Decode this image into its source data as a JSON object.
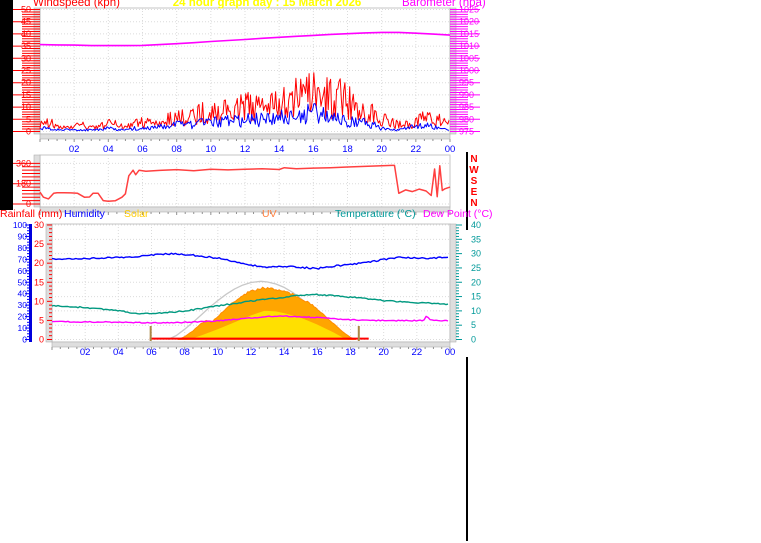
{
  "title": {
    "text": "24 hour graph day : 15 March 2026",
    "color": "#FFFF00"
  },
  "top_chart": {
    "left_label": "Windspeed (kph)",
    "left_label_color": "#FF0000",
    "right_label": "Barometer (hpa)",
    "right_label_color": "#FF00FF"
  },
  "legend_row": [
    {
      "text": "Rainfall (mm)",
      "color": "#FF0000"
    },
    {
      "text": "Humidity",
      "color": "#0000FF"
    },
    {
      "text": "Solar",
      "color": "#FFCC00"
    },
    {
      "text": "UV",
      "color": "#FF8040"
    },
    {
      "text": "Temperature (°C)",
      "color": "#009999"
    },
    {
      "text": "Dew Point (°C)",
      "color": "#FF00FF"
    }
  ],
  "x_tick_labels": [
    "02",
    "04",
    "06",
    "08",
    "10",
    "12",
    "14",
    "16",
    "18",
    "20",
    "22",
    "00"
  ],
  "chart_data": [
    {
      "type": "line",
      "title": "24 hour graph day : 15 March 2026",
      "x_axis": {
        "min": 0,
        "max": 24,
        "label_step": 2,
        "minor_step": 0.5,
        "color": "#0000FF"
      },
      "left_axis": {
        "label": "Windspeed (kph)",
        "min": 0,
        "max": 50,
        "step": 5,
        "minor_step": 1,
        "color": "#FF0000"
      },
      "right_axis": {
        "label": "Barometer (hpa)",
        "min": 975,
        "max": 1025,
        "step": 5,
        "minor_step": 1,
        "color": "#FF00FF"
      },
      "series": [
        {
          "name": "wind-gust",
          "axis": "left",
          "color": "#FF0000",
          "style": "spiky",
          "x_start": 0,
          "x_step": 0.5,
          "values": [
            4,
            6,
            3,
            2,
            3,
            4,
            2,
            3,
            5,
            4,
            3,
            5,
            6,
            5,
            6,
            7,
            8,
            9,
            10,
            11,
            12,
            12,
            13,
            14,
            15,
            14,
            16,
            15,
            17,
            18,
            20,
            22,
            23,
            22,
            21,
            20,
            18,
            16,
            14,
            11,
            8,
            6,
            4,
            4,
            5,
            9,
            8,
            6,
            5
          ]
        },
        {
          "name": "wind-speed",
          "axis": "left",
          "color": "#0000FF",
          "style": "spiky",
          "x_start": 0,
          "x_step": 0.5,
          "values": [
            2,
            2,
            1,
            1,
            1,
            1,
            1,
            1,
            2,
            1,
            1,
            2,
            2,
            2,
            3,
            3,
            4,
            4,
            4,
            5,
            5,
            6,
            6,
            6,
            7,
            7,
            7,
            8,
            8,
            9,
            9,
            10,
            11,
            10,
            9,
            8,
            7,
            6,
            5,
            4,
            2,
            1,
            1,
            2,
            3,
            4,
            3,
            2,
            2
          ]
        },
        {
          "name": "barometer",
          "axis": "right",
          "color": "#FF00FF",
          "style": "line",
          "width": 1.6,
          "x_start": 0,
          "x_step": 1,
          "values": [
            1010.6,
            1010.5,
            1010.4,
            1010.2,
            1010.2,
            1010.2,
            1010.3,
            1010.6,
            1011.0,
            1011.4,
            1011.9,
            1012.3,
            1012.7,
            1013.2,
            1013.6,
            1014.0,
            1014.4,
            1014.8,
            1015.1,
            1015.4,
            1015.6,
            1015.6,
            1015.3,
            1014.9,
            1014.5
          ]
        }
      ]
    },
    {
      "type": "line",
      "name": "wind-direction",
      "x_axis": {
        "min": 0,
        "max": 24,
        "minor_step": 0.5,
        "color": "#0000FF"
      },
      "left_axis": {
        "min": 0,
        "max": 360,
        "step": 180,
        "minor_step": 30,
        "color": "#FF0000"
      },
      "compass_letters": {
        "letters": [
          "N",
          "W",
          "S",
          "E",
          "N"
        ],
        "color": "#FF0000"
      },
      "series": [
        {
          "name": "wind-bearing",
          "color": "#FF4040",
          "style": "line",
          "width": 1.5,
          "x": [
            0,
            0.2,
            0.5,
            0.8,
            1.0,
            1.4,
            1.8,
            2.2,
            2.6,
            2.9,
            3.1,
            3.4,
            3.7,
            4.0,
            4.4,
            4.8,
            5.0,
            5.2,
            5.45,
            5.6,
            5.8,
            6.2,
            7,
            8,
            9,
            10,
            11,
            12,
            13,
            14,
            14.3,
            15,
            16,
            17,
            18,
            19,
            20,
            20.6,
            20.75,
            21,
            21.4,
            21.8,
            22.2,
            22.6,
            22.9,
            23.1,
            23.25,
            23.4,
            23.55,
            23.7,
            24
          ],
          "values": [
            105,
            60,
            45,
            95,
            100,
            100,
            98,
            95,
            60,
            62,
            95,
            95,
            30,
            25,
            28,
            60,
            90,
            250,
            300,
            260,
            300,
            290,
            298,
            305,
            295,
            308,
            302,
            308,
            312,
            306,
            322,
            312,
            318,
            322,
            328,
            333,
            340,
            342,
            342,
            95,
            125,
            110,
            132,
            115,
            75,
            310,
            65,
            340,
            120,
            135,
            150
          ]
        }
      ]
    },
    {
      "type": "line",
      "x_axis": {
        "min": 0,
        "max": 24,
        "label_step": 2,
        "minor_step": 0.5,
        "color": "#0000FF"
      },
      "axes": {
        "humidity": {
          "label": "Humidity",
          "side": "left",
          "min": 0,
          "max": 100,
          "step": 10,
          "color": "#0000FF"
        },
        "rainfall": {
          "label": "Rainfall (mm)",
          "side": "left",
          "min": 0,
          "max": 30,
          "step": 5,
          "color": "#FF0000"
        },
        "temperature": {
          "label": "Temperature (°C)",
          "side": "right",
          "min": 0,
          "max": 40,
          "step": 5,
          "color": "#009999"
        },
        "solar": {
          "label": "Solar",
          "min": 0,
          "max": 1000,
          "visible": false
        }
      },
      "sun_markers": {
        "x": [
          5.95,
          18.5
        ],
        "color": "#AA8844"
      },
      "series": [
        {
          "name": "solar-theoretical",
          "axis": "solar",
          "color": "#C8C8C8",
          "style": "line",
          "width": 1.3,
          "x": [
            7.0,
            7.5,
            8,
            8.5,
            9,
            9.5,
            10,
            10.5,
            11,
            11.5,
            12,
            12.6,
            13,
            13.5,
            14,
            14.5,
            15,
            15.5,
            16,
            16.5,
            17,
            17.5,
            18,
            18.2
          ],
          "values": [
            0,
            35,
            90,
            150,
            215,
            280,
            340,
            395,
            440,
            475,
            498,
            508,
            502,
            485,
            455,
            412,
            358,
            295,
            225,
            152,
            82,
            28,
            2,
            0
          ]
        },
        {
          "name": "solar-radiation",
          "axis": "solar",
          "color": "#FFA500",
          "style": "area",
          "stroke": "#FF8C00",
          "jitter_mult": 0.05,
          "x": [
            7.6,
            8,
            8.5,
            9,
            9.3,
            9.6,
            10,
            10.4,
            10.8,
            11.2,
            11.6,
            12,
            12.4,
            12.8,
            13.2,
            13.6,
            14,
            14.4,
            14.8,
            15.2,
            15.6,
            16,
            16.4,
            16.8,
            17.2,
            17.6,
            18,
            18.3
          ],
          "values": [
            0,
            25,
            75,
            140,
            165,
            150,
            200,
            255,
            310,
            355,
            395,
            420,
            440,
            450,
            445,
            430,
            418,
            400,
            375,
            345,
            310,
            265,
            215,
            160,
            110,
            60,
            18,
            0
          ]
        },
        {
          "name": "solar-inner",
          "axis": "solar",
          "color": "#FFE000",
          "style": "area",
          "stroke": "#FFA500",
          "x": [
            8.2,
            9,
            10,
            11,
            12,
            12.8,
            13.5,
            14,
            15,
            16,
            17,
            17.8
          ],
          "values": [
            0,
            40,
            95,
            155,
            215,
            255,
            250,
            235,
            195,
            135,
            65,
            0
          ]
        },
        {
          "name": "uv-index",
          "axis": "temperature",
          "color": "#FF0000",
          "style": "line",
          "width": 2,
          "x": [
            5.9,
            19.1
          ],
          "values": [
            0.3,
            0.3
          ]
        },
        {
          "name": "humidity",
          "axis": "humidity",
          "color": "#0000FF",
          "style": "wiggle",
          "width": 1.4,
          "jitter": 0.7,
          "x_start": 0,
          "x_step": 1,
          "values": [
            70,
            70,
            71,
            71,
            72,
            72,
            74,
            75,
            74,
            73,
            71,
            68,
            65,
            63,
            64,
            63,
            62,
            64,
            66,
            67,
            70,
            72,
            71,
            71,
            72
          ]
        },
        {
          "name": "temperature",
          "axis": "temperature",
          "color": "#009980",
          "style": "wiggle",
          "width": 1.4,
          "jitter": 0.22,
          "x_start": 0,
          "x_step": 1,
          "values": [
            11.8,
            11.5,
            11.2,
            10.6,
            10.1,
            9.2,
            9.0,
            9.4,
            10.0,
            10.8,
            11.8,
            12.6,
            13.4,
            14.1,
            14.8,
            15.5,
            15.7,
            15.3,
            14.8,
            14.2,
            13.6,
            13.2,
            12.9,
            12.6,
            12.3
          ]
        },
        {
          "name": "dew-point",
          "axis": "temperature",
          "color": "#FF00FF",
          "style": "wiggle",
          "width": 1.4,
          "jitter": 0.18,
          "x": [
            0,
            1,
            2,
            3,
            4,
            5,
            6,
            7,
            8,
            9,
            10,
            11,
            12,
            13,
            14,
            15,
            16,
            17,
            18,
            19,
            20,
            21,
            22,
            22.4,
            22.6,
            22.8,
            23,
            24
          ],
          "values": [
            6.3,
            6.2,
            6.2,
            6.1,
            6.0,
            5.9,
            5.8,
            5.9,
            6.0,
            6.2,
            6.6,
            7.0,
            7.5,
            8.0,
            8.2,
            8.0,
            7.6,
            7.2,
            6.9,
            6.7,
            6.6,
            6.6,
            6.6,
            6.7,
            8.3,
            6.8,
            6.7,
            6.6
          ]
        }
      ]
    }
  ]
}
